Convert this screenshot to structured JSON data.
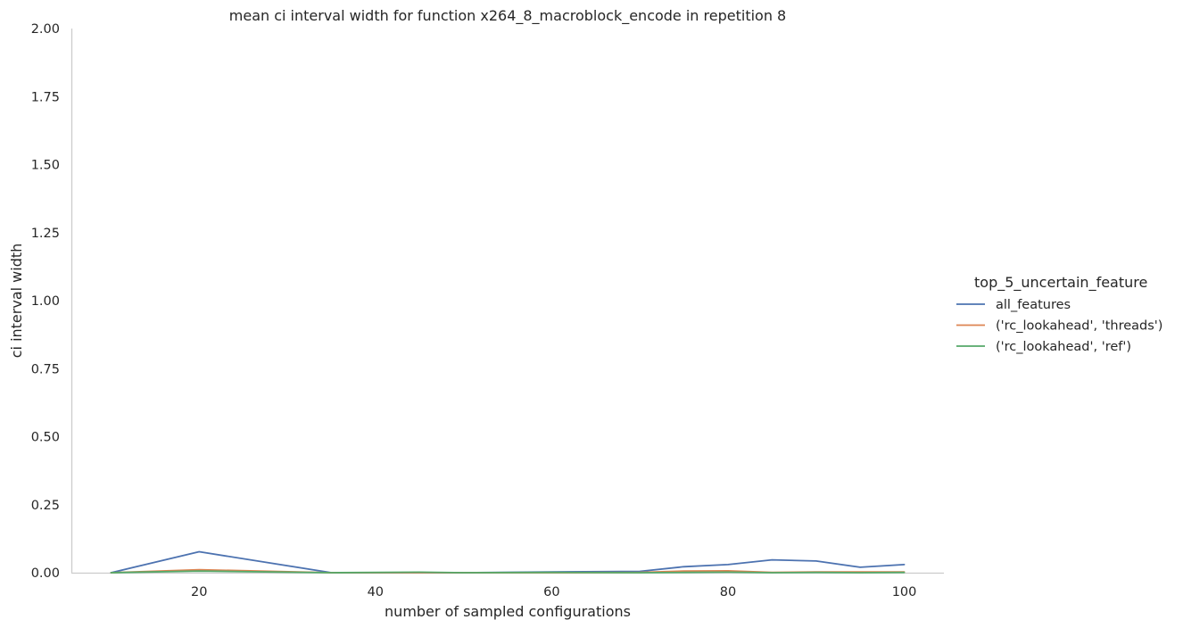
{
  "chart_data": {
    "type": "line",
    "title": "mean ci interval width for function x264_8_macroblock_encode in repetition 8",
    "xlabel": "number of sampled configurations",
    "ylabel": "ci interval width",
    "xlim": [
      5.5,
      104.5
    ],
    "ylim": [
      0,
      2
    ],
    "xticks": [
      "20",
      "40",
      "60",
      "80",
      "100"
    ],
    "yticks": [
      "0.00",
      "0.25",
      "0.50",
      "0.75",
      "1.00",
      "1.25",
      "1.50",
      "1.75",
      "2.00"
    ],
    "grid": false,
    "legend": {
      "title": "top_5_uncertain_feature",
      "placement": "right"
    },
    "series": [
      {
        "name": "all_features",
        "color": "#4c72b0",
        "x": [
          10,
          20,
          35,
          45,
          50,
          60,
          70,
          75,
          80,
          85,
          90,
          95,
          100
        ],
        "values": [
          0.0,
          0.077,
          0.0,
          0.0,
          0.0,
          0.003,
          0.005,
          0.022,
          0.03,
          0.047,
          0.043,
          0.02,
          0.03
        ]
      },
      {
        "name": "('rc_lookahead', 'threads')",
        "color": "#dd8452",
        "x": [
          10,
          20,
          35,
          45,
          50,
          60,
          70,
          75,
          80,
          85,
          90,
          95,
          100
        ],
        "values": [
          0.0,
          0.011,
          0.0,
          0.0,
          0.0,
          0.0,
          0.001,
          0.006,
          0.007,
          0.001,
          0.003,
          0.003,
          0.003
        ]
      },
      {
        "name": "('rc_lookahead', 'ref')",
        "color": "#55a868",
        "x": [
          10,
          20,
          35,
          45,
          50,
          60,
          70,
          75,
          80,
          85,
          90,
          95,
          100
        ],
        "values": [
          0.0,
          0.006,
          0.0,
          0.002,
          0.0,
          0.001,
          0.0,
          0.001,
          0.002,
          0.0,
          0.001,
          0.0,
          0.001
        ]
      }
    ]
  }
}
